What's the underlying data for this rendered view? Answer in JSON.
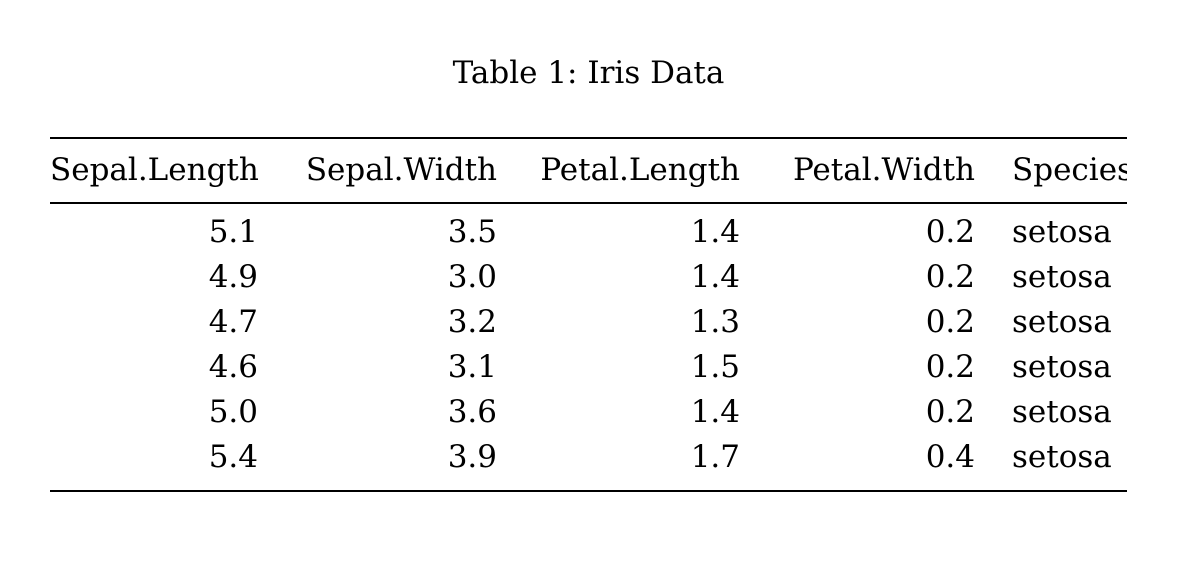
{
  "page": {
    "background_color": "#ffffff",
    "text_color": "#000000",
    "rule_color": "#000000"
  },
  "caption": {
    "text": "Table 1: Iris Data"
  },
  "table": {
    "columns": [
      "Sepal.Length",
      "Sepal.Width",
      "Petal.Length",
      "Petal.Width",
      "Species"
    ],
    "align": [
      "right",
      "right",
      "right",
      "right",
      "left"
    ],
    "rows": [
      [
        "5.1",
        "3.5",
        "1.4",
        "0.2",
        "setosa"
      ],
      [
        "4.9",
        "3.0",
        "1.4",
        "0.2",
        "setosa"
      ],
      [
        "4.7",
        "3.2",
        "1.3",
        "0.2",
        "setosa"
      ],
      [
        "4.6",
        "3.1",
        "1.5",
        "0.2",
        "setosa"
      ],
      [
        "5.0",
        "3.6",
        "1.4",
        "0.2",
        "setosa"
      ],
      [
        "5.4",
        "3.9",
        "1.7",
        "0.4",
        "setosa"
      ]
    ]
  }
}
